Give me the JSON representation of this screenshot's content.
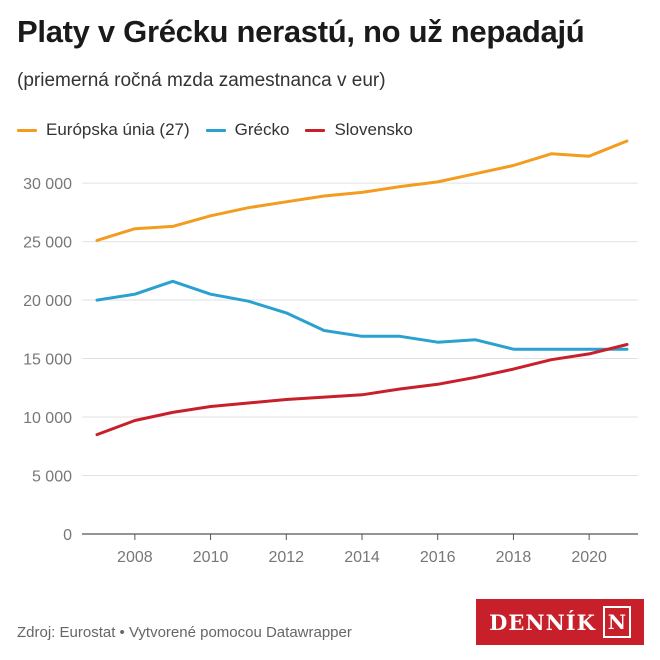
{
  "header": {
    "title": "Platy v Grécku nerastú, no už nepadajú",
    "subtitle": "(priemerná ročná mzda zamestnanca v eur)"
  },
  "footer": {
    "source": "Zdroj: Eurostat • Vytvorené pomocou Datawrapper"
  },
  "logo": {
    "text": "DENNÍK",
    "mark": "N"
  },
  "chart_data": {
    "type": "line",
    "title": "Platy v Grécku nerastú, no už nepadajú",
    "subtitle": "(priemerná ročná mzda zamestnanca v eur)",
    "xlabel": "",
    "ylabel": "",
    "x": [
      2007,
      2008,
      2009,
      2010,
      2011,
      2012,
      2013,
      2014,
      2015,
      2016,
      2017,
      2018,
      2019,
      2020,
      2021
    ],
    "xlim": [
      2007,
      2021
    ],
    "ylim": [
      0,
      33000
    ],
    "x_ticks": [
      2008,
      2010,
      2012,
      2014,
      2016,
      2018,
      2020
    ],
    "y_ticks": [
      0,
      5000,
      10000,
      15000,
      20000,
      25000,
      30000
    ],
    "y_tick_labels": [
      "0",
      "5 000",
      "10 000",
      "15 000",
      "20 000",
      "25 000",
      "30 000"
    ],
    "grid": "horizontal",
    "legend_position": "top-left",
    "series": [
      {
        "name": "Európska únia (27)",
        "color": "#f39c1f",
        "values": [
          25100,
          26100,
          26300,
          27200,
          27900,
          28400,
          28900,
          29200,
          29700,
          30100,
          30800,
          31500,
          32500,
          32300,
          33600
        ]
      },
      {
        "name": "Grécko",
        "color": "#2aa1cf",
        "values": [
          20000,
          20500,
          21600,
          20500,
          19900,
          18900,
          17400,
          16900,
          16900,
          16400,
          16600,
          15800,
          15800,
          15800,
          15800
        ]
      },
      {
        "name": "Slovensko",
        "color": "#c8202a",
        "values": [
          8500,
          9700,
          10400,
          10900,
          11200,
          11500,
          11700,
          11900,
          12400,
          12800,
          13400,
          14100,
          14900,
          15400,
          16200
        ]
      }
    ]
  }
}
